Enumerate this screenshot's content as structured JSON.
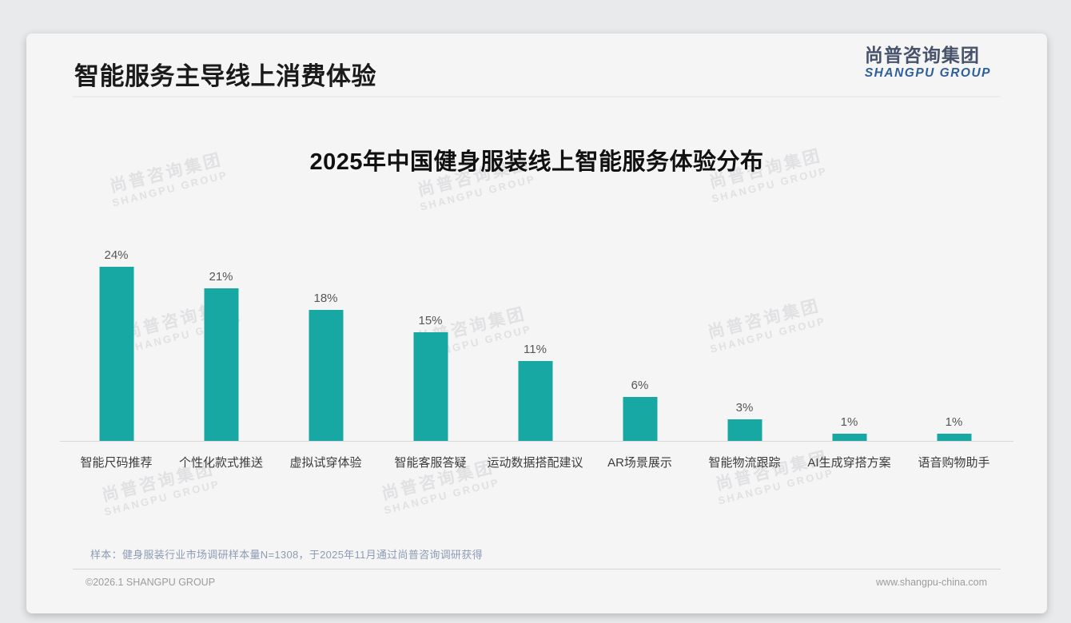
{
  "page": {
    "header": {
      "title": "智能服务主导线上消费体验"
    },
    "logo": {
      "cn": "尚普咨询集团",
      "en": "SHANGPU GROUP"
    },
    "watermark": {
      "cn": "尚普咨询集团",
      "en": "SHANGPU GROUP"
    },
    "footnote": "样本：健身服装行业市场调研样本量N=1308，于2025年11月通过尚普咨询调研获得",
    "footer": {
      "copyright": "©2026.1 SHANGPU GROUP",
      "website": "www.shangpu-china.com"
    }
  },
  "theme": {
    "bar_color": "#17A8A3",
    "logo_cn_color": "#47526B",
    "logo_en_color": "#2F5F9B",
    "footnote_color": "#8D9CB3",
    "title_color": "#1A1A1A",
    "watermark_color": "#E1E1E3",
    "axis_color": "#D9D9D9"
  },
  "chart_data": {
    "type": "bar",
    "title": "2025年中国健身服装线上智能服务体验分布",
    "categories": [
      "智能尺码推荐",
      "个性化款式推送",
      "虚拟试穿体验",
      "智能客服答疑",
      "运动数据搭配建议",
      "AR场景展示",
      "智能物流跟踪",
      "AI生成穿搭方案",
      "语音购物助手"
    ],
    "values": [
      24,
      21,
      18,
      15,
      11,
      6,
      3,
      1,
      1
    ],
    "value_labels": [
      "24%",
      "21%",
      "18%",
      "15%",
      "11%",
      "6%",
      "3%",
      "1%",
      "1%"
    ],
    "unit": "%",
    "ylim": [
      0,
      26
    ],
    "xlabel": "",
    "ylabel": "",
    "grid": false,
    "legend": false,
    "bar_color": "#17A8A3"
  }
}
